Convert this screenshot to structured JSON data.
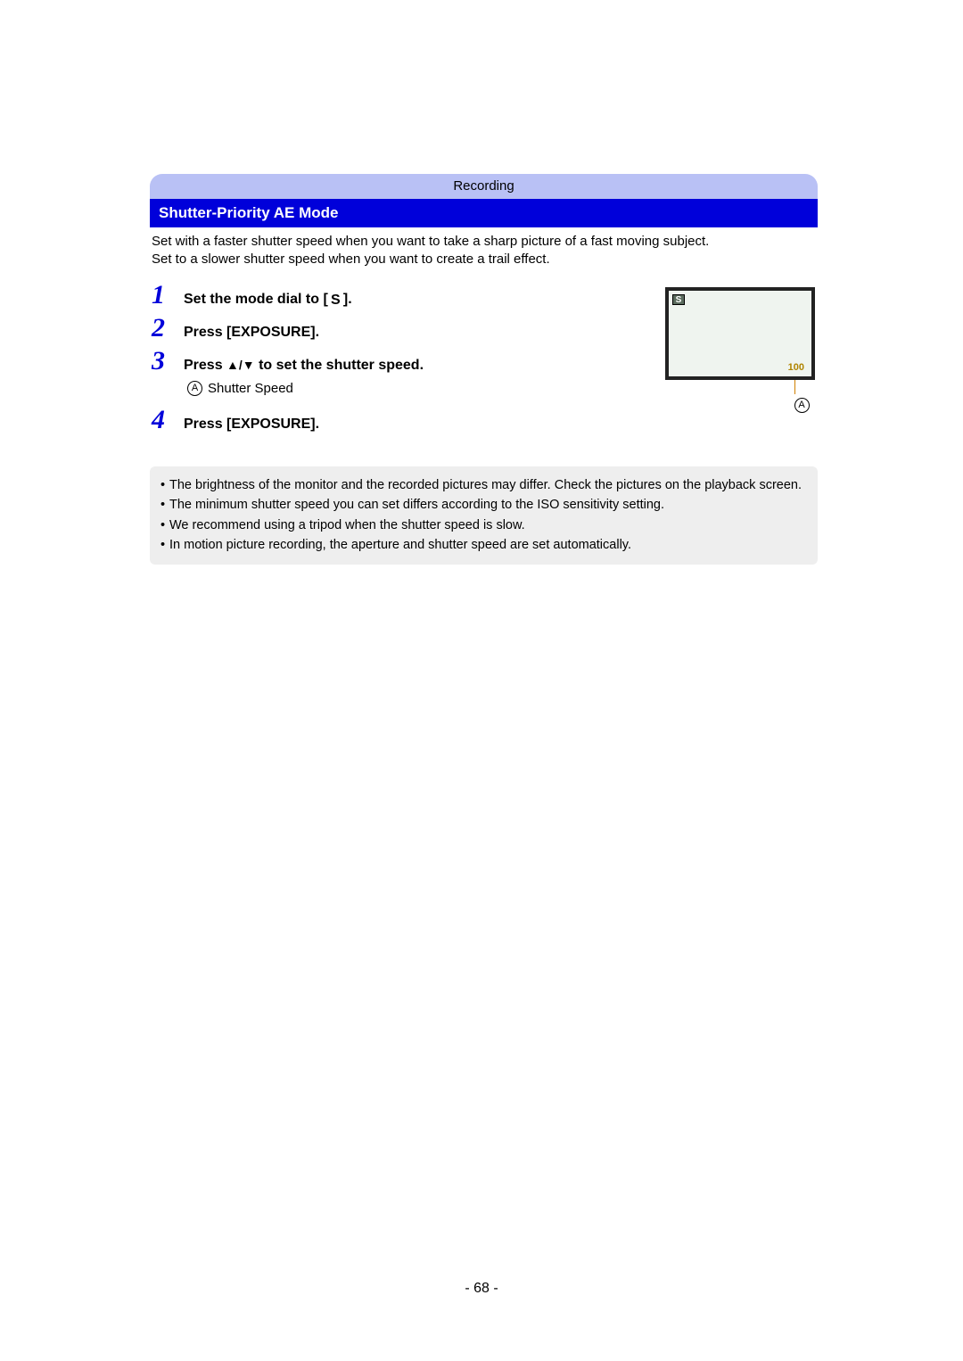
{
  "colors": {
    "tab_bg": "#b9c1f5",
    "title_bg": "#0000da",
    "title_text": "#ffffff",
    "body_text": "#000000",
    "step_number": "#0000da",
    "note_bg": "#eeeeee",
    "lcd_border": "#222222",
    "lcd_bg": "#eff4ef",
    "lcd_value_color": "#b08400",
    "page_bg": "#ffffff"
  },
  "tab_label": "Recording",
  "section_title": "Shutter-Priority AE Mode",
  "intro_line1": "Set with a faster shutter speed when you want to take a sharp picture of a fast moving subject.",
  "intro_line2": "Set to a slower shutter speed when you want to create a trail effect.",
  "steps": {
    "1": {
      "prefix": "Set the mode dial to [ ",
      "mode_symbol": "S",
      "suffix": " ]."
    },
    "2": {
      "text": "Press [EXPOSURE]."
    },
    "3": {
      "prefix": "Press ",
      "arrows": "▲/▼",
      "suffix": " to set the shutter speed."
    },
    "3_sub": {
      "marker": "A",
      "label": "Shutter Speed"
    },
    "4": {
      "text": "Press [EXPOSURE]."
    }
  },
  "lcd": {
    "mode_indicator": "S",
    "value": "100",
    "legend_marker": "A"
  },
  "notes": [
    "The brightness of the monitor and the recorded pictures may differ. Check the pictures on the playback screen.",
    "The minimum shutter speed you can set differs according to the ISO sensitivity setting.",
    "We recommend using a tripod when the shutter speed is slow.",
    "In motion picture recording, the aperture and shutter speed are set automatically."
  ],
  "page_number": "- 68 -"
}
